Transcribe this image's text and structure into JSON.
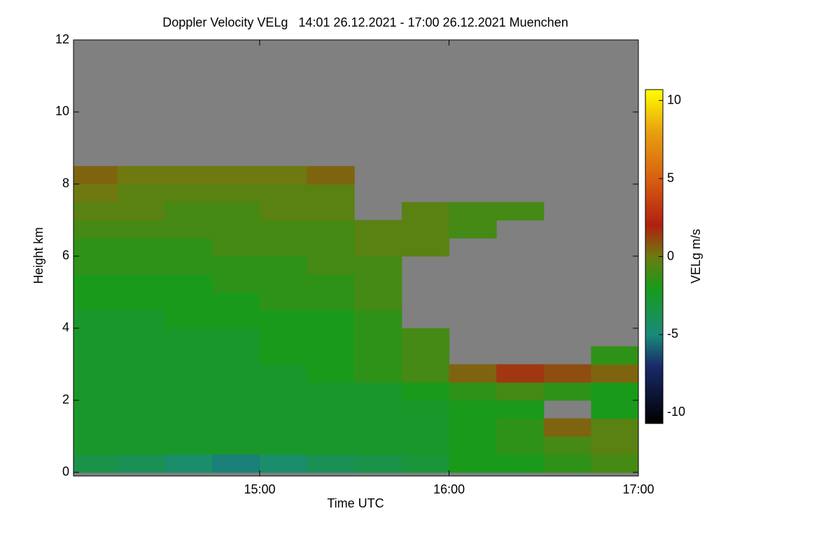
{
  "chart_data": {
    "type": "heatmap",
    "title": "Doppler Velocity VELg   14:01 26.12.2021 - 17:00 26.12.2021 Muenchen",
    "x_label": "Time UTC",
    "y_label": "Height km",
    "colorbar_label": "VELg m/s",
    "xlim": [
      14.0167,
      17.0
    ],
    "xticks": [
      {
        "value": 15,
        "label": "15:00"
      },
      {
        "value": 16,
        "label": "16:00"
      },
      {
        "value": 17,
        "label": "17:00"
      }
    ],
    "ylim": [
      -0.1,
      12
    ],
    "yticks": [
      0,
      2,
      4,
      6,
      8,
      10,
      12
    ],
    "zlim": [
      -10.7,
      10.7
    ],
    "zticks": [
      -10,
      -5,
      0,
      5,
      10
    ],
    "no_data_color": "#808080",
    "colorscale": [
      [
        -10.7,
        "#000000"
      ],
      [
        -7,
        "#1a2a6a"
      ],
      [
        -5,
        "#1a8a7a"
      ],
      [
        -2,
        "#1a9a1a"
      ],
      [
        0,
        "#6e7a10"
      ],
      [
        2,
        "#b02010"
      ],
      [
        5,
        "#d86010"
      ],
      [
        8,
        "#e8a010"
      ],
      [
        10.7,
        "#ffff00"
      ]
    ],
    "x": [
      14.125,
      14.375,
      14.625,
      14.875,
      15.125,
      15.375,
      15.625,
      15.875,
      16.125,
      16.375,
      16.625,
      16.875
    ],
    "y": [
      0.25,
      0.75,
      1.25,
      1.75,
      2.25,
      2.75,
      3.25,
      3.75,
      4.25,
      4.75,
      5.25,
      5.75,
      6.25,
      6.75,
      7.25,
      7.75,
      8.25,
      8.75,
      9.25,
      9.75,
      10.25,
      10.75,
      11.25,
      11.75
    ],
    "z": [
      [
        -3.5,
        -3.8,
        -4.5,
        -5.2,
        -4.5,
        -3.8,
        -3.5,
        -3,
        -2,
        -2,
        -1.5,
        -1
      ],
      [
        -2.5,
        -2.5,
        -2.5,
        -2.5,
        -2.5,
        -2.5,
        -2.5,
        -2.5,
        -2,
        -1.5,
        -1,
        -0.5
      ],
      [
        -2.5,
        -2.5,
        -2.5,
        -2.5,
        -2.5,
        -2.5,
        -2.5,
        -2.5,
        -2,
        -1.5,
        0.5,
        -0.5
      ],
      [
        -2.5,
        -2.5,
        -2.5,
        -2.5,
        -2.5,
        -2.5,
        -2.5,
        -2.5,
        -2,
        -2,
        null,
        -2
      ],
      [
        -2.5,
        -2.5,
        -2.5,
        -2.5,
        -2.5,
        -2.5,
        -2.5,
        -2,
        -1.5,
        -1,
        -1.5,
        -2
      ],
      [
        -2.5,
        -2.5,
        -2.5,
        -2.5,
        -2.5,
        -2,
        -1.5,
        -1,
        0.5,
        1.5,
        1,
        0.5
      ],
      [
        -2.5,
        -2.5,
        -2.5,
        -2.5,
        -2,
        -2,
        -1.5,
        -1,
        null,
        null,
        null,
        -1.5
      ],
      [
        -2.5,
        -2.5,
        -2.5,
        -2.5,
        -2,
        -2,
        -1.5,
        -1,
        null,
        null,
        null,
        null
      ],
      [
        -2.5,
        -2.5,
        -2,
        -2,
        -2,
        -2,
        -1.5,
        null,
        null,
        null,
        null,
        null
      ],
      [
        -2,
        -2,
        -2,
        -2,
        -1.5,
        -1.5,
        -1,
        null,
        null,
        null,
        null,
        null
      ],
      [
        -2,
        -2,
        -2,
        -1.5,
        -1.5,
        -1.5,
        -1,
        null,
        null,
        null,
        null,
        null
      ],
      [
        -1.5,
        -1.5,
        -1.5,
        -1.5,
        -1.5,
        -1,
        -1,
        null,
        null,
        null,
        null,
        null
      ],
      [
        -1.5,
        -1.5,
        -1.5,
        -1,
        -1,
        -1,
        -0.5,
        -0.5,
        null,
        null,
        null,
        null
      ],
      [
        -1,
        -1,
        -1,
        -1,
        -1,
        -1,
        -0.5,
        -0.5,
        -1,
        null,
        null,
        null
      ],
      [
        -0.5,
        -0.5,
        -1,
        -1,
        -0.5,
        -0.5,
        null,
        -0.5,
        -1,
        -1,
        null,
        null
      ],
      [
        0,
        -0.5,
        -0.5,
        -0.5,
        -0.5,
        -0.5,
        null,
        null,
        null,
        null,
        null,
        null
      ],
      [
        0.5,
        0,
        0,
        0,
        0,
        0.5,
        null,
        null,
        null,
        null,
        null,
        null
      ],
      [
        null,
        null,
        null,
        null,
        null,
        null,
        null,
        null,
        null,
        null,
        null,
        null
      ],
      [
        null,
        null,
        null,
        null,
        null,
        null,
        null,
        null,
        null,
        null,
        null,
        null
      ],
      [
        null,
        null,
        null,
        null,
        null,
        null,
        null,
        null,
        null,
        null,
        null,
        null
      ],
      [
        null,
        null,
        null,
        null,
        null,
        null,
        null,
        null,
        null,
        null,
        null,
        null
      ],
      [
        null,
        null,
        null,
        null,
        null,
        null,
        null,
        null,
        null,
        null,
        null,
        null
      ],
      [
        null,
        null,
        null,
        null,
        null,
        null,
        null,
        null,
        null,
        null,
        null,
        null
      ],
      [
        null,
        null,
        null,
        null,
        null,
        null,
        null,
        null,
        null,
        null,
        null,
        null
      ]
    ]
  }
}
